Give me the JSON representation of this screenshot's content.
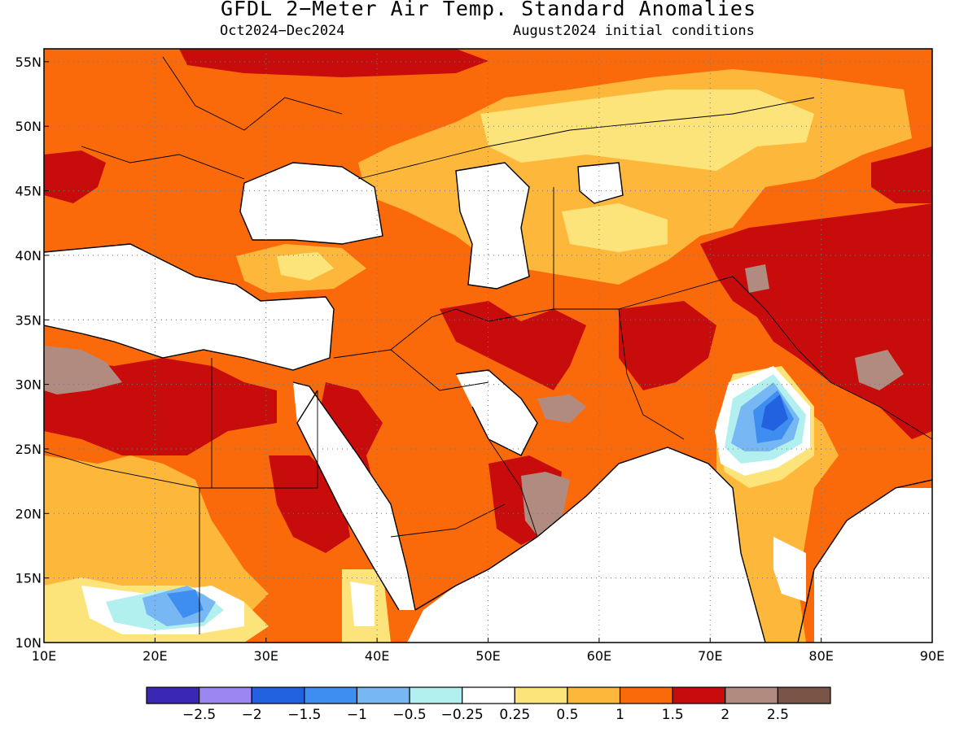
{
  "title": "GFDL 2−Meter Air Temp. Standard Anomalies",
  "period": "Oct2024−Dec2024",
  "initial_conditions": "August2024 initial conditions",
  "map": {
    "lon_range": [
      10,
      90
    ],
    "lat_range": [
      10,
      56
    ],
    "lat_ticks": [
      "10N",
      "15N",
      "20N",
      "25N",
      "30N",
      "35N",
      "40N",
      "45N",
      "50N",
      "55N"
    ],
    "lon_ticks": [
      "10E",
      "20E",
      "30E",
      "40E",
      "50E",
      "60E",
      "70E",
      "80E",
      "90E"
    ],
    "grid": "dotted"
  },
  "colorbar": {
    "colors": [
      "#3a27b4",
      "#9b86f2",
      "#2262e0",
      "#3d8ef0",
      "#77b7f4",
      "#b2efef",
      "#ffffff",
      "#fde47a",
      "#fdb83c",
      "#fb6a0a",
      "#c80c0c",
      "#b18b80",
      "#7a5446"
    ],
    "labels": [
      "−2.5",
      "−2",
      "−1.5",
      "−1",
      "−0.5",
      "−0.25",
      "0.25",
      "0.5",
      "1",
      "1.5",
      "2",
      "2.5"
    ]
  },
  "colors": {
    "gray": "#b18b80",
    "dark_red": "#c80c0c",
    "orange": "#fb6a0a",
    "light_orange": "#fdb83c",
    "yellow": "#fde47a",
    "light_blue": "#77b7f4",
    "blue": "#3d8ef0",
    "dark_blue": "#2262e0"
  }
}
